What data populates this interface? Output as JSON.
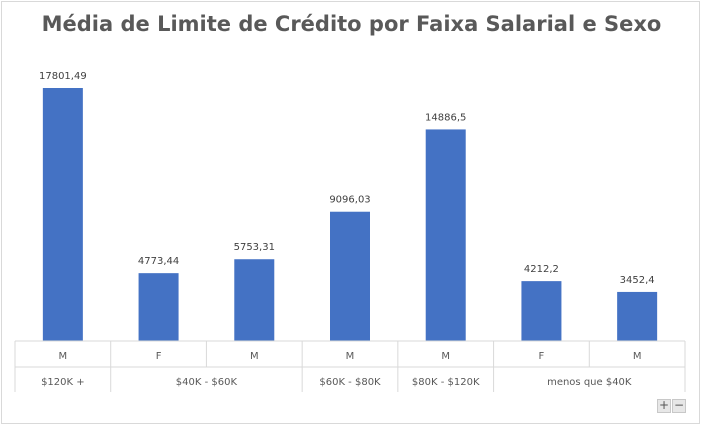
{
  "chart_data": {
    "type": "bar",
    "title": "Média de Limite de Crédito por Faixa Salarial e Sexo",
    "xlabel": "",
    "ylabel": "",
    "ylim": [
      0,
      17801.49
    ],
    "grid": false,
    "legend": "none",
    "bar_color": "#4472C4",
    "groups": [
      {
        "label": "$120K +",
        "categories": [
          "M"
        ],
        "values": [
          17801.49
        ],
        "value_labels": [
          "17801,49"
        ]
      },
      {
        "label": "$40K - $60K",
        "categories": [
          "F",
          "M"
        ],
        "values": [
          4773.44,
          5753.31
        ],
        "value_labels": [
          "4773,44",
          "5753,31"
        ]
      },
      {
        "label": "$60K - $80K",
        "categories": [
          "M"
        ],
        "values": [
          9096.03
        ],
        "value_labels": [
          "9096,03"
        ]
      },
      {
        "label": "$80K - $120K",
        "categories": [
          "M"
        ],
        "values": [
          14886.5
        ],
        "value_labels": [
          "14886,5"
        ]
      },
      {
        "label": "menos que $40K",
        "categories": [
          "F",
          "M"
        ],
        "values": [
          4212.2,
          3452.4
        ],
        "value_labels": [
          "4212,2",
          "3452,4"
        ]
      }
    ]
  },
  "controls": {
    "zoom_in_label": "+",
    "zoom_out_label": "−"
  }
}
